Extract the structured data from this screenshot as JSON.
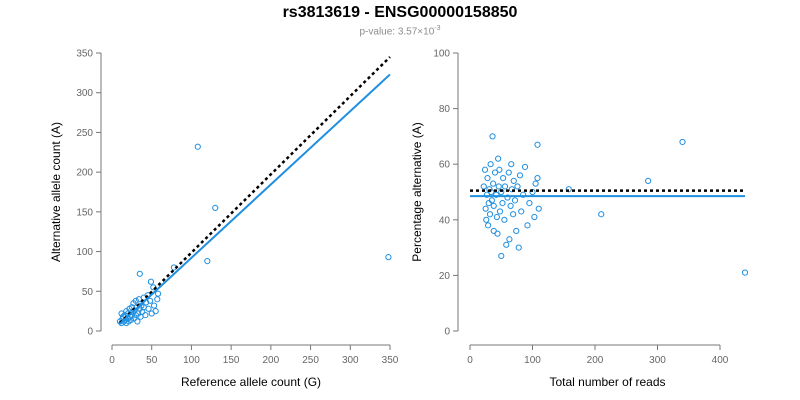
{
  "header": {
    "title": "rs3813619 - ENSG00000158850",
    "pvalue_prefix": "p-value: 3.57×10",
    "pvalue_exp": "-3"
  },
  "colors": {
    "points": "#1f8fe0",
    "fit": "#1f8fe0",
    "reference": "#000000",
    "axis": "#777777"
  },
  "chart_data": [
    {
      "type": "scatter",
      "xlabel": "Reference allele count (G)",
      "ylabel": "Alternative allele count (A)",
      "xlim": [
        0,
        350
      ],
      "ylim": [
        0,
        350
      ],
      "xticks": [
        0,
        50,
        100,
        150,
        200,
        250,
        300,
        350
      ],
      "yticks": [
        0,
        50,
        100,
        150,
        200,
        250,
        300,
        350
      ],
      "fit_line": {
        "x": [
          10,
          350
        ],
        "y": [
          9,
          323
        ]
      },
      "reference_line": {
        "x": [
          10,
          350
        ],
        "y": [
          10,
          345
        ]
      },
      "points": [
        [
          10,
          12
        ],
        [
          12,
          10
        ],
        [
          12,
          22
        ],
        [
          13,
          15
        ],
        [
          14,
          18
        ],
        [
          15,
          12
        ],
        [
          16,
          20
        ],
        [
          17,
          14
        ],
        [
          18,
          10
        ],
        [
          18,
          25
        ],
        [
          20,
          16
        ],
        [
          20,
          22
        ],
        [
          21,
          12
        ],
        [
          22,
          28
        ],
        [
          23,
          18
        ],
        [
          24,
          14
        ],
        [
          25,
          30
        ],
        [
          25,
          20
        ],
        [
          26,
          24
        ],
        [
          27,
          35
        ],
        [
          28,
          16
        ],
        [
          28,
          26
        ],
        [
          30,
          20
        ],
        [
          30,
          38
        ],
        [
          31,
          30
        ],
        [
          32,
          12
        ],
        [
          33,
          22
        ],
        [
          34,
          40
        ],
        [
          35,
          28
        ],
        [
          35,
          72
        ],
        [
          36,
          18
        ],
        [
          37,
          32
        ],
        [
          38,
          24
        ],
        [
          40,
          42
        ],
        [
          40,
          30
        ],
        [
          42,
          20
        ],
        [
          43,
          36
        ],
        [
          45,
          45
        ],
        [
          46,
          28
        ],
        [
          48,
          38
        ],
        [
          49,
          62
        ],
        [
          50,
          22
        ],
        [
          52,
          55
        ],
        [
          53,
          32
        ],
        [
          55,
          25
        ],
        [
          57,
          40
        ],
        [
          58,
          47
        ],
        [
          78,
          80
        ],
        [
          108,
          232
        ],
        [
          120,
          88
        ],
        [
          130,
          155
        ],
        [
          348,
          93
        ]
      ]
    },
    {
      "type": "scatter",
      "xlabel": "Total number of reads",
      "ylabel": "Percentage alternative (A)",
      "xlim": [
        0,
        440
      ],
      "ylim": [
        0,
        100
      ],
      "xticks": [
        0,
        100,
        200,
        300,
        400
      ],
      "yticks": [
        0,
        20,
        40,
        60,
        80,
        100
      ],
      "fit_line": {
        "x": [
          0,
          440
        ],
        "y": [
          48.5,
          48.5
        ]
      },
      "reference_line": {
        "x": [
          0,
          440
        ],
        "y": [
          50.5,
          50.5
        ]
      },
      "points": [
        [
          22,
          52
        ],
        [
          24,
          58
        ],
        [
          25,
          44
        ],
        [
          26,
          40
        ],
        [
          27,
          49
        ],
        [
          28,
          55
        ],
        [
          29,
          38
        ],
        [
          30,
          46
        ],
        [
          31,
          51
        ],
        [
          32,
          42
        ],
        [
          33,
          60
        ],
        [
          34,
          50
        ],
        [
          35,
          47
        ],
        [
          36,
          70
        ],
        [
          37,
          53
        ],
        [
          38,
          45
        ],
        [
          38,
          36
        ],
        [
          40,
          57
        ],
        [
          42,
          49
        ],
        [
          43,
          41
        ],
        [
          44,
          35
        ],
        [
          45,
          62
        ],
        [
          46,
          52
        ],
        [
          47,
          58
        ],
        [
          48,
          43
        ],
        [
          50,
          50
        ],
        [
          50,
          27
        ],
        [
          52,
          46
        ],
        [
          53,
          55
        ],
        [
          55,
          40
        ],
        [
          56,
          52
        ],
        [
          58,
          31
        ],
        [
          60,
          48
        ],
        [
          62,
          57
        ],
        [
          63,
          33
        ],
        [
          65,
          45
        ],
        [
          66,
          60
        ],
        [
          67,
          51
        ],
        [
          69,
          42
        ],
        [
          70,
          54
        ],
        [
          72,
          47
        ],
        [
          74,
          36
        ],
        [
          76,
          52
        ],
        [
          78,
          30
        ],
        [
          80,
          56
        ],
        [
          82,
          43
        ],
        [
          85,
          49
        ],
        [
          88,
          59
        ],
        [
          92,
          38
        ],
        [
          95,
          46
        ],
        [
          100,
          50
        ],
        [
          103,
          41
        ],
        [
          105,
          53
        ],
        [
          108,
          55
        ],
        [
          108,
          67
        ],
        [
          110,
          44
        ],
        [
          158,
          51
        ],
        [
          210,
          42
        ],
        [
          285,
          54
        ],
        [
          340,
          68
        ],
        [
          440,
          21
        ]
      ]
    }
  ]
}
